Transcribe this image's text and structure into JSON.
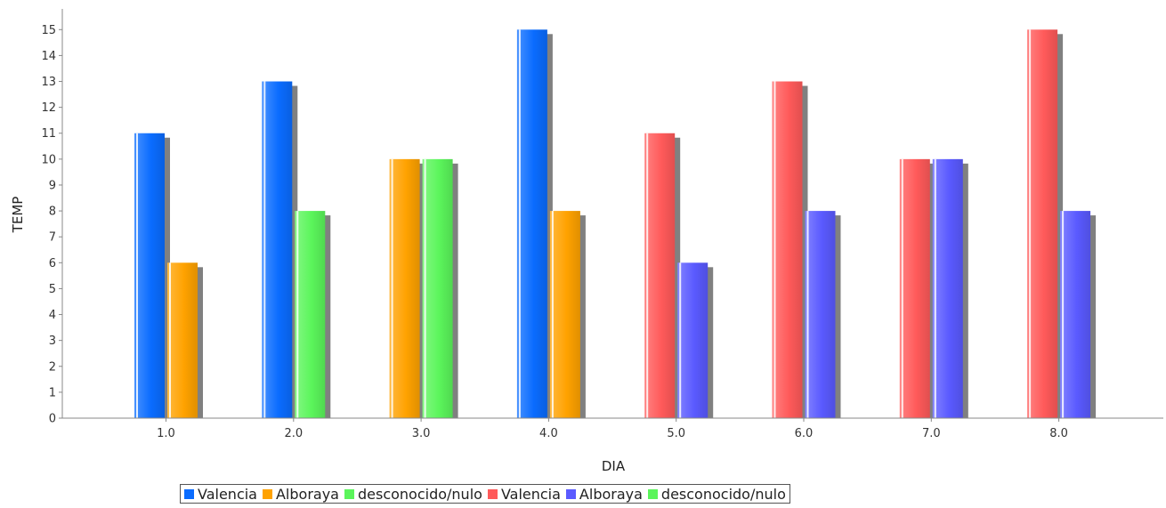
{
  "chart_data": {
    "type": "bar",
    "xlabel": "DIA",
    "ylabel": "TEMP",
    "ylim": [
      0,
      15.8
    ],
    "yticks": [
      0,
      1,
      2,
      3,
      4,
      5,
      6,
      7,
      8,
      9,
      10,
      11,
      12,
      13,
      14,
      15
    ],
    "categories": [
      "1.0",
      "2.0",
      "3.0",
      "4.0",
      "5.0",
      "6.0",
      "7.0",
      "8.0"
    ],
    "series": [
      {
        "name": "Valencia",
        "color": "#0a6cff",
        "values": [
          11,
          13,
          null,
          15,
          null,
          null,
          null,
          null
        ]
      },
      {
        "name": "Alboraya",
        "color": "#ffa200",
        "values": [
          6,
          null,
          10,
          8,
          null,
          null,
          null,
          null
        ]
      },
      {
        "name": "desconocido/nulo",
        "color": "#5bf55b",
        "values": [
          null,
          8,
          10,
          null,
          null,
          null,
          null,
          null
        ]
      },
      {
        "name": "Valencia",
        "color": "#ff5a5a",
        "values": [
          null,
          null,
          null,
          null,
          11,
          13,
          10,
          15
        ]
      },
      {
        "name": "Alboraya",
        "color": "#5a5aff",
        "values": [
          null,
          null,
          null,
          null,
          6,
          8,
          10,
          8
        ]
      },
      {
        "name": "desconocido/nulo",
        "color": "#5bf55b",
        "values": [
          null,
          null,
          null,
          null,
          null,
          null,
          null,
          null
        ]
      }
    ],
    "legend_position": "bottom",
    "grid": false
  }
}
